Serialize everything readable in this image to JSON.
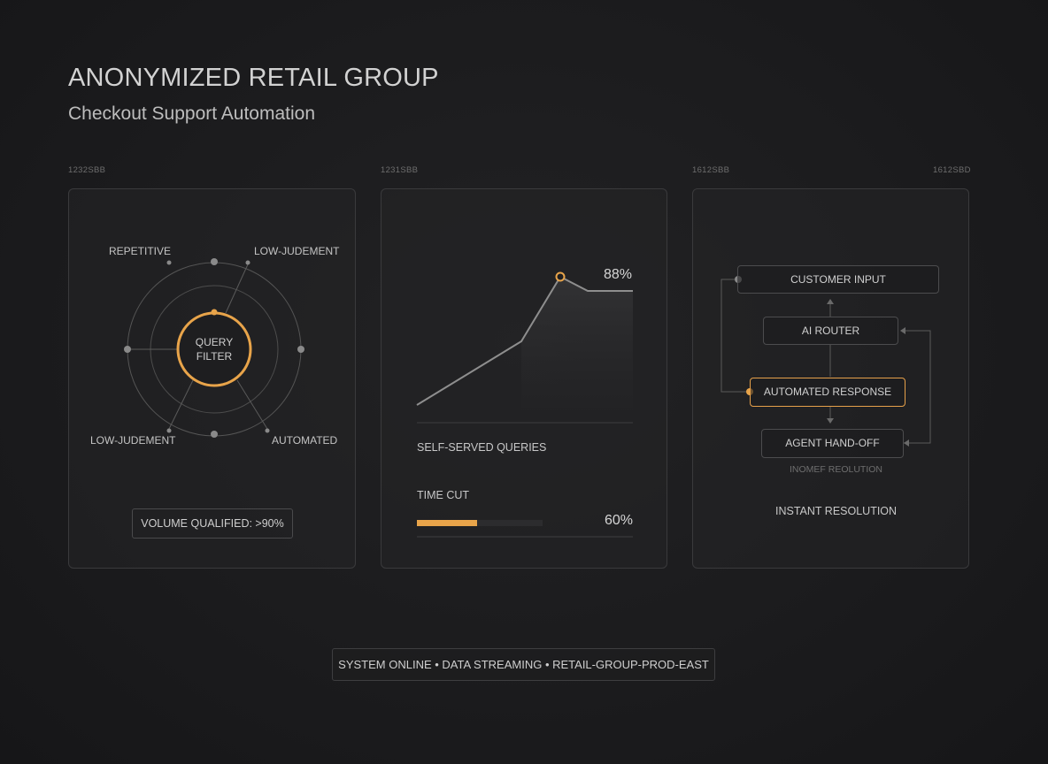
{
  "header": {
    "title": "ANONYMIZED RETAIL GROUP",
    "subtitle": "Checkout Support Automation"
  },
  "panel_codes": [
    "1232SBB",
    "1231SBB",
    "1612SBB",
    "1612SBD"
  ],
  "filter_panel": {
    "center_label_line1": "QUERY",
    "center_label_line2": "FILTER",
    "labels": {
      "top_left": "REPETITIVE",
      "top_right": "LOW-JUDEMENT",
      "bottom_left": "LOW-JUDEMENT",
      "bottom_right": "AUTOMATED"
    },
    "volume_label": "VOLUME QUALIFIED: >90%"
  },
  "metrics_panel": {
    "peak_label": "88%",
    "peak_value": 88,
    "metric_caption": "SELF-SERVED QUERIES",
    "time_caption": "TIME CUT",
    "time_value_label": "60%",
    "time_fraction": 0.48
  },
  "flow_panel": {
    "nodes": {
      "customer_input": "CUSTOMER INPUT",
      "ai_router": "AI ROUTER",
      "automated_response": "AUTOMATED RESPONSE",
      "agent_handoff": "AGENT HAND-OFF"
    },
    "faint_label": "INOMEF REOLUTION",
    "footer_label": "INSTANT RESOLUTION"
  },
  "status_bar": {
    "text": "SYSTEM ONLINE • DATA STREAMING • RETAIL-GROUP-PROD-EAST"
  },
  "colors": {
    "accent": "#e8a44a",
    "line": "#8a8a8a",
    "border": "#3a3a3c"
  }
}
